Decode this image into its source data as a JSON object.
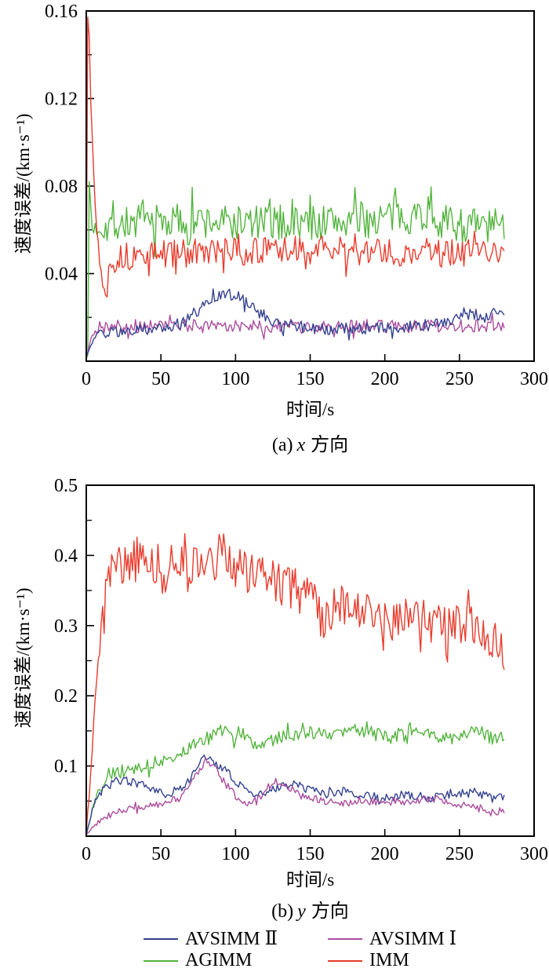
{
  "chart_data": [
    {
      "id": "a",
      "type": "line",
      "caption_prefix": "(a)",
      "caption_var": "x",
      "caption_suffix": "方向",
      "xlabel": "时间/s",
      "ylabel": "速度误差/(km·s⁻¹)",
      "xlim": [
        0,
        300
      ],
      "ylim": [
        0,
        0.16
      ],
      "x_end": 280,
      "xticks": [
        0,
        50,
        100,
        150,
        200,
        250,
        300
      ],
      "yticks": [
        0.04,
        0.08,
        0.12,
        0.16
      ],
      "ytick_labels": [
        "0.04",
        "0.08",
        "0.12",
        "0.16"
      ],
      "yminor_step": 0.02,
      "grid": false,
      "legend_position": "below-figure",
      "series": [
        {
          "key": "agimm",
          "name": "AGIMM",
          "color": "#53b43e",
          "noise": 0.0085,
          "seed": 7,
          "trend": [
            [
              0,
              0.001
            ],
            [
              1,
              0.002
            ],
            [
              2,
              0.082
            ],
            [
              4,
              0.06
            ],
            [
              10,
              0.062
            ],
            [
              20,
              0.063
            ],
            [
              60,
              0.064
            ],
            [
              120,
              0.063
            ],
            [
              180,
              0.064
            ],
            [
              232,
              0.068
            ],
            [
              240,
              0.063
            ],
            [
              280,
              0.061
            ]
          ]
        },
        {
          "key": "imm",
          "name": "IMM",
          "color": "#e93b2c",
          "noise": 0.0065,
          "seed": 13,
          "trend": [
            [
              0,
              0.03
            ],
            [
              1,
              0.158
            ],
            [
              2,
              0.15
            ],
            [
              3,
              0.12
            ],
            [
              5,
              0.085
            ],
            [
              7,
              0.06
            ],
            [
              10,
              0.042
            ],
            [
              12,
              0.03
            ],
            [
              15,
              0.046
            ],
            [
              20,
              0.047
            ],
            [
              50,
              0.049
            ],
            [
              100,
              0.05
            ],
            [
              160,
              0.051
            ],
            [
              220,
              0.049
            ],
            [
              280,
              0.05
            ]
          ]
        },
        {
          "key": "avsimm1",
          "name": "AVSIMM Ⅰ",
          "color": "#ab4d9e",
          "noise": 0.0032,
          "seed": 21,
          "trend": [
            [
              0,
              0.002
            ],
            [
              4,
              0.012
            ],
            [
              8,
              0.015
            ],
            [
              15,
              0.016
            ],
            [
              280,
              0.016
            ]
          ]
        },
        {
          "key": "avsimm2",
          "name": "AVSIMM Ⅱ",
          "color": "#35428f",
          "noise": 0.0028,
          "seed": 29,
          "trend": [
            [
              0,
              0.002
            ],
            [
              4,
              0.009
            ],
            [
              10,
              0.013
            ],
            [
              30,
              0.014
            ],
            [
              55,
              0.015
            ],
            [
              65,
              0.018
            ],
            [
              75,
              0.023
            ],
            [
              85,
              0.028
            ],
            [
              95,
              0.031
            ],
            [
              100,
              0.03
            ],
            [
              108,
              0.026
            ],
            [
              118,
              0.021
            ],
            [
              130,
              0.017
            ],
            [
              145,
              0.0155
            ],
            [
              165,
              0.0145
            ],
            [
              190,
              0.015
            ],
            [
              215,
              0.0155
            ],
            [
              235,
              0.017
            ],
            [
              248,
              0.02
            ],
            [
              258,
              0.022
            ],
            [
              266,
              0.02
            ],
            [
              274,
              0.023
            ],
            [
              280,
              0.022
            ]
          ]
        }
      ]
    },
    {
      "id": "b",
      "type": "line",
      "caption_prefix": "(b)",
      "caption_var": "y",
      "caption_suffix": "方向",
      "xlabel": "时间/s",
      "ylabel": "速度误差/(km·s⁻¹)",
      "xlim": [
        0,
        300
      ],
      "ylim": [
        0,
        0.5
      ],
      "x_end": 280,
      "xticks": [
        0,
        50,
        100,
        150,
        200,
        250,
        300
      ],
      "yticks": [
        0.1,
        0.2,
        0.3,
        0.4,
        0.5
      ],
      "ytick_labels": [
        "0.1",
        "0.2",
        "0.3",
        "0.4",
        "0.5"
      ],
      "yminor_step": 0.05,
      "grid": false,
      "legend_position": "below-figure",
      "series": [
        {
          "key": "agimm",
          "name": "AGIMM",
          "color": "#53b43e",
          "noise": 0.0095,
          "seed": 37,
          "trend": [
            [
              0,
              0.003
            ],
            [
              5,
              0.045
            ],
            [
              10,
              0.07
            ],
            [
              15,
              0.088
            ],
            [
              25,
              0.093
            ],
            [
              40,
              0.1
            ],
            [
              55,
              0.112
            ],
            [
              70,
              0.128
            ],
            [
              82,
              0.14
            ],
            [
              92,
              0.152
            ],
            [
              100,
              0.142
            ],
            [
              112,
              0.132
            ],
            [
              125,
              0.138
            ],
            [
              140,
              0.146
            ],
            [
              155,
              0.149
            ],
            [
              168,
              0.143
            ],
            [
              180,
              0.15
            ],
            [
              192,
              0.148
            ],
            [
              203,
              0.138
            ],
            [
              214,
              0.15
            ],
            [
              225,
              0.146
            ],
            [
              238,
              0.14
            ],
            [
              250,
              0.141
            ],
            [
              262,
              0.15
            ],
            [
              272,
              0.14
            ],
            [
              280,
              0.146
            ]
          ]
        },
        {
          "key": "avsimm2",
          "name": "AVSIMM Ⅱ",
          "color": "#35428f",
          "noise": 0.006,
          "seed": 43,
          "trend": [
            [
              0,
              0.002
            ],
            [
              4,
              0.038
            ],
            [
              8,
              0.058
            ],
            [
              12,
              0.068
            ],
            [
              18,
              0.077
            ],
            [
              25,
              0.08
            ],
            [
              32,
              0.076
            ],
            [
              40,
              0.071
            ],
            [
              48,
              0.064
            ],
            [
              55,
              0.059
            ],
            [
              62,
              0.064
            ],
            [
              68,
              0.076
            ],
            [
              74,
              0.096
            ],
            [
              79,
              0.112
            ],
            [
              84,
              0.106
            ],
            [
              90,
              0.099
            ],
            [
              96,
              0.088
            ],
            [
              102,
              0.074
            ],
            [
              108,
              0.064
            ],
            [
              115,
              0.059
            ],
            [
              122,
              0.064
            ],
            [
              130,
              0.071
            ],
            [
              138,
              0.074
            ],
            [
              146,
              0.069
            ],
            [
              154,
              0.063
            ],
            [
              162,
              0.06
            ],
            [
              172,
              0.064
            ],
            [
              182,
              0.059
            ],
            [
              192,
              0.057
            ],
            [
              202,
              0.054
            ],
            [
              212,
              0.059
            ],
            [
              222,
              0.057
            ],
            [
              232,
              0.054
            ],
            [
              242,
              0.059
            ],
            [
              252,
              0.062
            ],
            [
              258,
              0.067
            ],
            [
              265,
              0.059
            ],
            [
              272,
              0.054
            ],
            [
              280,
              0.055
            ]
          ]
        },
        {
          "key": "avsimm1",
          "name": "AVSIMM Ⅰ",
          "color": "#ab4d9e",
          "noise": 0.005,
          "seed": 51,
          "trend": [
            [
              0,
              0.002
            ],
            [
              5,
              0.014
            ],
            [
              10,
              0.024
            ],
            [
              20,
              0.034
            ],
            [
              30,
              0.041
            ],
            [
              45,
              0.044
            ],
            [
              55,
              0.049
            ],
            [
              62,
              0.054
            ],
            [
              68,
              0.068
            ],
            [
              74,
              0.088
            ],
            [
              80,
              0.108
            ],
            [
              86,
              0.098
            ],
            [
              92,
              0.078
            ],
            [
              100,
              0.058
            ],
            [
              108,
              0.046
            ],
            [
              118,
              0.059
            ],
            [
              127,
              0.079
            ],
            [
              134,
              0.074
            ],
            [
              143,
              0.059
            ],
            [
              153,
              0.053
            ],
            [
              163,
              0.049
            ],
            [
              173,
              0.047
            ],
            [
              183,
              0.049
            ],
            [
              193,
              0.049
            ],
            [
              203,
              0.047
            ],
            [
              213,
              0.049
            ],
            [
              223,
              0.051
            ],
            [
              233,
              0.054
            ],
            [
              243,
              0.049
            ],
            [
              253,
              0.044
            ],
            [
              263,
              0.039
            ],
            [
              272,
              0.036
            ],
            [
              280,
              0.033
            ]
          ]
        },
        {
          "key": "imm",
          "name": "IMM",
          "color": "#e93b2c",
          "noise": 0.032,
          "seed": 61,
          "trend": [
            [
              0,
              0.005
            ],
            [
              3,
              0.09
            ],
            [
              6,
              0.19
            ],
            [
              9,
              0.26
            ],
            [
              12,
              0.32
            ],
            [
              15,
              0.37
            ],
            [
              20,
              0.395
            ],
            [
              28,
              0.385
            ],
            [
              36,
              0.4
            ],
            [
              44,
              0.385
            ],
            [
              52,
              0.375
            ],
            [
              60,
              0.395
            ],
            [
              68,
              0.38
            ],
            [
              76,
              0.382
            ],
            [
              84,
              0.395
            ],
            [
              92,
              0.4
            ],
            [
              100,
              0.378
            ],
            [
              110,
              0.372
            ],
            [
              120,
              0.368
            ],
            [
              130,
              0.358
            ],
            [
              140,
              0.352
            ],
            [
              150,
              0.342
            ],
            [
              158,
              0.3
            ],
            [
              166,
              0.335
            ],
            [
              175,
              0.33
            ],
            [
              185,
              0.318
            ],
            [
              195,
              0.312
            ],
            [
              205,
              0.308
            ],
            [
              215,
              0.312
            ],
            [
              225,
              0.318
            ],
            [
              235,
              0.298
            ],
            [
              245,
              0.303
            ],
            [
              255,
              0.298
            ],
            [
              262,
              0.305
            ],
            [
              270,
              0.288
            ],
            [
              276,
              0.268
            ],
            [
              280,
              0.262
            ]
          ]
        }
      ]
    }
  ],
  "legend": {
    "items": [
      {
        "key": "avsimm2",
        "label": "AVSIMM Ⅱ",
        "color": "#35428f"
      },
      {
        "key": "avsimm1",
        "label": "AVSIMM Ⅰ",
        "color": "#ab4d9e"
      },
      {
        "key": "agimm",
        "label": "AGIMM",
        "color": "#53b43e"
      },
      {
        "key": "imm",
        "label": "IMM",
        "color": "#e93b2c"
      }
    ]
  }
}
